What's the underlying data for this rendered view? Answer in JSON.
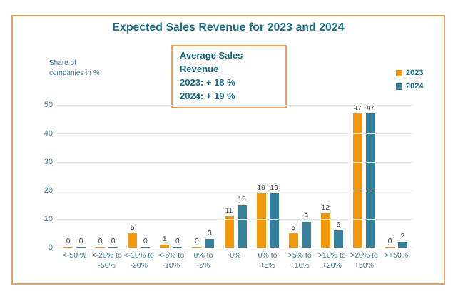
{
  "annotation": {
    "lines": [
      "Average Sales Revenue",
      "2023: + 18 %",
      "2024: + 19 %"
    ]
  },
  "chart_data": {
    "type": "bar",
    "title": "Expected Sales Revenue for 2023 and 2024",
    "y_axis_label": "Share of\ncompanies in %",
    "categories": [
      "<-50 %",
      "<-20% to\n-50%",
      "<-10% to\n-20%",
      "<-5% to\n-10%",
      "0% to\n-5%",
      "0%",
      "0% to\n+5%",
      ">5% to\n+10%",
      ">10% to\n+20%",
      ">20% to\n+50%",
      ">+50%"
    ],
    "series": [
      {
        "name": "2023",
        "color": "#F2990B",
        "values": [
          0,
          0,
          5,
          1,
          0,
          11,
          19,
          5,
          12,
          47,
          0
        ]
      },
      {
        "name": "2024",
        "color": "#36809B",
        "values": [
          0,
          0,
          0,
          0,
          3,
          15,
          19,
          9,
          6,
          47,
          2
        ]
      }
    ],
    "y_ticks": [
      0,
      10,
      20,
      30,
      40,
      50
    ],
    "ylim": [
      0,
      50
    ],
    "grid": true,
    "data_labels": true,
    "legend_position": "top-right"
  },
  "colors": {
    "frame_border": "#F0A155",
    "title_text": "#176B87",
    "axis_text": "#41788F",
    "data_label_text": "#4A4A4A",
    "gridline": "#EBEBEB",
    "series_2023": "#F2990B",
    "series_2024": "#36809B",
    "background": "#FFFFFF"
  }
}
